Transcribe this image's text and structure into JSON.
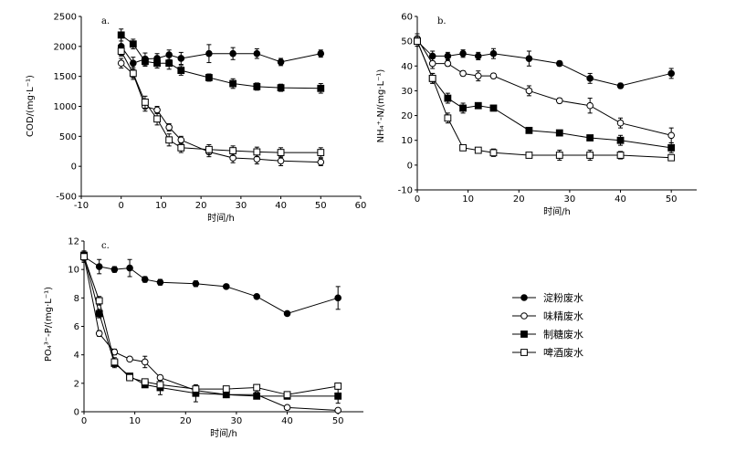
{
  "chart_data": [
    {
      "type": "line",
      "panel_label": "a.",
      "xlabel": "时间/h",
      "ylabel": "COD/(mg·L⁻¹)",
      "xlim": [
        -10,
        60
      ],
      "ylim": [
        -500,
        2500
      ],
      "xticks": [
        "-10",
        "0",
        "10",
        "20",
        "30",
        "40",
        "50",
        "60"
      ],
      "yticks": [
        "-500",
        "0",
        "500",
        "1000",
        "1500",
        "2000",
        "2500"
      ],
      "x": [
        0,
        3,
        6,
        9,
        12,
        15,
        22,
        28,
        34,
        40,
        50
      ],
      "series": [
        {
          "name": "淀粉废水",
          "marker": "filled-circle",
          "values": [
            2000,
            1720,
            1790,
            1800,
            1860,
            1800,
            1880,
            1880,
            1880,
            1740,
            1880
          ],
          "errors": [
            150,
            100,
            100,
            80,
            80,
            100,
            150,
            100,
            80,
            60,
            60
          ]
        },
        {
          "name": "味精废水",
          "marker": "open-circle",
          "values": [
            1720,
            1540,
            1000,
            940,
            650,
            440,
            240,
            140,
            120,
            90,
            70
          ],
          "errors": [
            80,
            60,
            80,
            60,
            60,
            60,
            80,
            80,
            80,
            80,
            60
          ]
        },
        {
          "name": "制糖废水",
          "marker": "filled-square",
          "values": [
            2190,
            2040,
            1750,
            1720,
            1720,
            1600,
            1480,
            1380,
            1330,
            1310,
            1300
          ],
          "errors": [
            100,
            80,
            80,
            80,
            100,
            80,
            60,
            80,
            60,
            60,
            80
          ]
        },
        {
          "name": "啤酒废水",
          "marker": "open-square",
          "values": [
            1920,
            1550,
            1070,
            790,
            440,
            310,
            280,
            260,
            240,
            230,
            230
          ],
          "errors": [
            80,
            100,
            100,
            100,
            100,
            80,
            80,
            80,
            80,
            80,
            80
          ]
        }
      ]
    },
    {
      "type": "line",
      "panel_label": "b.",
      "xlabel": "时间/h",
      "ylabel": "NH₄⁺-N/(mg·L⁻¹)",
      "xlim": [
        0,
        55
      ],
      "ylim": [
        -10,
        60
      ],
      "xticks": [
        "0",
        "10",
        "20",
        "30",
        "40",
        "50"
      ],
      "yticks": [
        "-10",
        "0",
        "10",
        "20",
        "30",
        "40",
        "50",
        "60"
      ],
      "x": [
        0,
        3,
        6,
        9,
        12,
        15,
        22,
        28,
        34,
        40,
        50
      ],
      "series": [
        {
          "name": "淀粉废水",
          "marker": "filled-circle",
          "values": [
            50,
            44,
            44,
            45,
            44,
            45,
            43,
            41,
            35,
            32,
            37
          ],
          "errors": [
            2,
            2,
            1.5,
            1.5,
            1.5,
            2,
            3,
            1,
            2,
            1,
            2
          ]
        },
        {
          "name": "味精废水",
          "marker": "open-circle",
          "values": [
            51,
            41,
            41,
            37,
            36,
            36,
            30,
            26,
            24,
            17,
            12
          ],
          "errors": [
            2,
            2,
            1,
            1,
            2,
            1,
            2,
            1,
            3,
            2,
            3
          ]
        },
        {
          "name": "制糖废水",
          "marker": "filled-square",
          "values": [
            50,
            35,
            27,
            23,
            24,
            23,
            14,
            13,
            11,
            10,
            7
          ],
          "errors": [
            2,
            2,
            2,
            2,
            1,
            1,
            1,
            1,
            1,
            2,
            2
          ]
        },
        {
          "name": "啤酒废水",
          "marker": "open-square",
          "values": [
            50,
            35,
            19,
            7,
            6,
            5,
            4,
            4,
            4,
            4,
            3
          ],
          "errors": [
            2,
            2,
            2,
            1,
            1,
            1.5,
            1,
            2,
            2,
            1.5,
            1
          ]
        }
      ]
    },
    {
      "type": "line",
      "panel_label": "c.",
      "xlabel": "时间/h",
      "ylabel": "PO₄³⁻-P/(mg·L⁻¹)",
      "xlim": [
        0,
        55
      ],
      "ylim": [
        0,
        12
      ],
      "xticks": [
        "0",
        "10",
        "20",
        "30",
        "40",
        "50"
      ],
      "yticks": [
        "0",
        "2",
        "4",
        "6",
        "8",
        "10",
        "12"
      ],
      "x": [
        0,
        3,
        6,
        9,
        12,
        15,
        22,
        28,
        34,
        40,
        50
      ],
      "series": [
        {
          "name": "淀粉废水",
          "marker": "filled-circle",
          "values": [
            10.9,
            10.2,
            10.0,
            10.1,
            9.3,
            9.1,
            9.0,
            8.8,
            8.1,
            6.9,
            8.0
          ],
          "errors": [
            0.4,
            0.5,
            0.2,
            0.6,
            0.2,
            0.2,
            0.2,
            0.1,
            0.1,
            0.1,
            0.8
          ]
        },
        {
          "name": "味精废水",
          "marker": "open-circle",
          "values": [
            10.9,
            5.5,
            4.2,
            3.7,
            3.5,
            2.4,
            1.5,
            1.2,
            1.2,
            0.3,
            0.1
          ],
          "errors": [
            0.3,
            0.2,
            0.2,
            0.1,
            0.4,
            0.1,
            0.3,
            0.1,
            0.1,
            0.1,
            0.1
          ]
        },
        {
          "name": "制糖废水",
          "marker": "filled-square",
          "values": [
            11.0,
            6.9,
            3.4,
            2.5,
            1.9,
            1.7,
            1.3,
            1.2,
            1.1,
            1.1,
            1.1
          ],
          "errors": [
            0.3,
            0.3,
            0.3,
            0.2,
            0.2,
            0.5,
            0.6,
            0.1,
            0.1,
            0.1,
            0.5
          ]
        },
        {
          "name": "啤酒废水",
          "marker": "open-square",
          "values": [
            10.9,
            7.8,
            3.5,
            2.4,
            2.1,
            1.9,
            1.6,
            1.6,
            1.7,
            1.2,
            1.8
          ],
          "errors": [
            0.3,
            0.3,
            0.3,
            0.2,
            0.2,
            0.2,
            0.2,
            0.1,
            0.2,
            0.1,
            0.1
          ]
        }
      ]
    }
  ],
  "legend": {
    "items": [
      {
        "label": "淀粉废水",
        "marker": "filled-circle"
      },
      {
        "label": "味精废水",
        "marker": "open-circle"
      },
      {
        "label": "制糖废水",
        "marker": "filled-square"
      },
      {
        "label": "啤酒废水",
        "marker": "open-square"
      }
    ]
  }
}
